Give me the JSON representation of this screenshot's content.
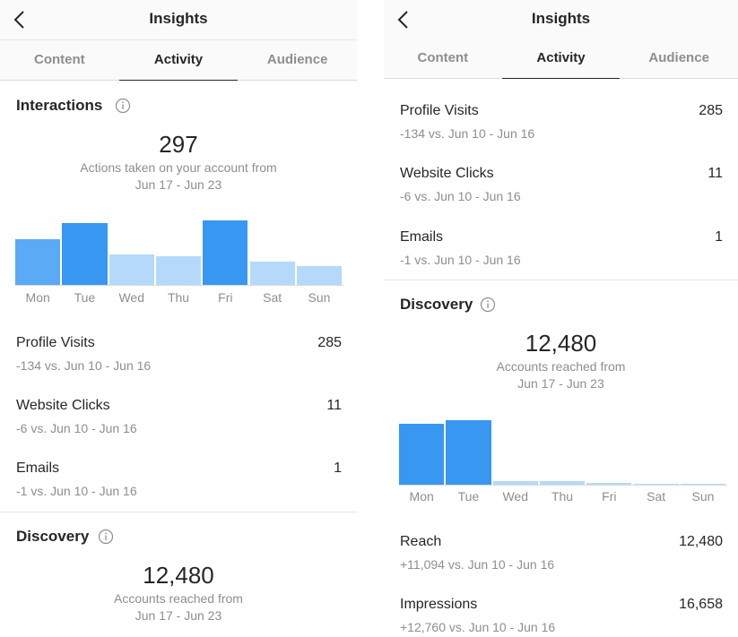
{
  "colors": {
    "bar_dark": "#3897f0",
    "bar_medium": "#5aaaf5",
    "bar_light": "#b5d9fb",
    "text_primary": "#262626",
    "text_secondary": "#8e8e8e"
  },
  "header": {
    "title": "Insights",
    "back_icon": "chevron-left-icon"
  },
  "tabs": [
    {
      "label": "Content",
      "active": false
    },
    {
      "label": "Activity",
      "active": true
    },
    {
      "label": "Audience",
      "active": false
    }
  ],
  "days": [
    "Mon",
    "Tue",
    "Wed",
    "Thu",
    "Fri",
    "Sat",
    "Sun"
  ],
  "interactions": {
    "title": "Interactions",
    "info_icon": "info-circle-icon",
    "total": "297",
    "caption_line1": "Actions taken on your account from",
    "caption_line2": "Jun 17 - Jun 23",
    "chart_data": {
      "type": "bar",
      "categories": [
        "Mon",
        "Tue",
        "Wed",
        "Thu",
        "Fri",
        "Sat",
        "Sun"
      ],
      "values": [
        52,
        70,
        35,
        33,
        73,
        27,
        22
      ],
      "shade": [
        "medium",
        "dark",
        "light",
        "light",
        "dark",
        "light",
        "light"
      ]
    },
    "rows": [
      {
        "label": "Profile Visits",
        "value": "285",
        "change": "-134 vs. Jun 10 - Jun 16"
      },
      {
        "label": "Website Clicks",
        "value": "11",
        "change": "-6 vs. Jun 10 - Jun 16"
      },
      {
        "label": "Emails",
        "value": "1",
        "change": "-1 vs. Jun 10 - Jun 16"
      }
    ]
  },
  "discovery": {
    "title": "Discovery",
    "info_icon": "info-circle-icon",
    "total": "12,480",
    "caption_line1": "Accounts reached from",
    "caption_line2": "Jun 17 - Jun 23",
    "chart_data": {
      "type": "bar",
      "categories": [
        "Mon",
        "Tue",
        "Wed",
        "Thu",
        "Fri",
        "Sat",
        "Sun"
      ],
      "values": [
        69,
        73,
        5,
        5,
        3,
        1,
        1
      ],
      "shade": [
        "dark",
        "dark",
        "light",
        "light",
        "light",
        "light",
        "light"
      ]
    },
    "rows": [
      {
        "label": "Reach",
        "value": "12,480",
        "change": "+11,094 vs. Jun 10 - Jun 16"
      },
      {
        "label": "Impressions",
        "value": "16,658",
        "change": "+12,760 vs. Jun 10 - Jun 16"
      }
    ]
  }
}
